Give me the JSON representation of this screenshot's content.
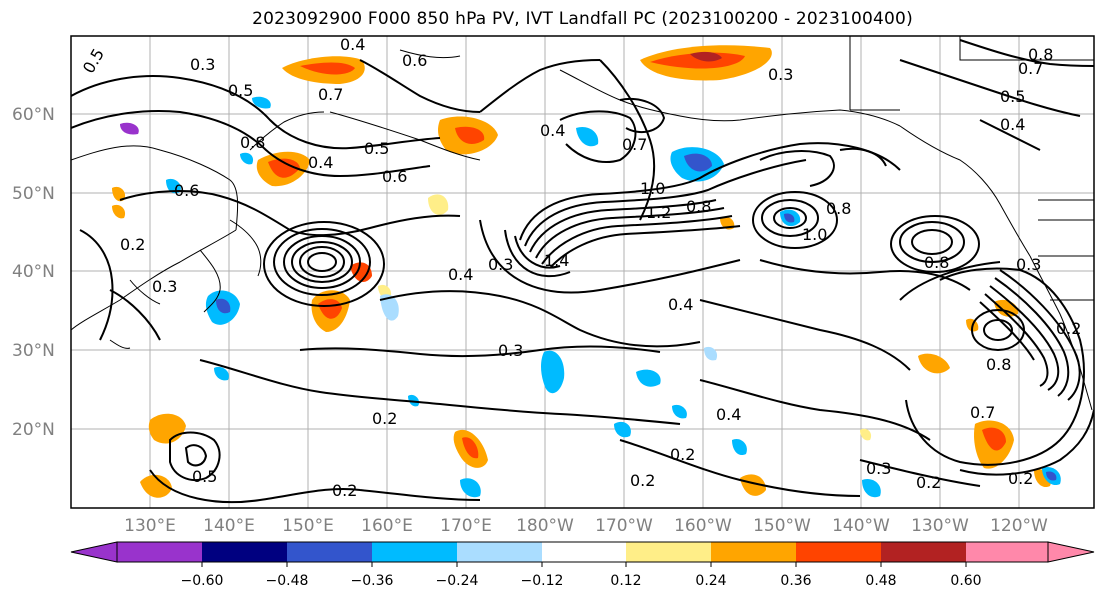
{
  "title": "2023092900 F000 850 hPa PV, IVT Landfall PC (2023100200 - 2023100400)",
  "map": {
    "lat_labels": [
      "60°N",
      "50°N",
      "40°N",
      "30°N",
      "20°N"
    ],
    "lon_labels": [
      "130°E",
      "140°E",
      "150°E",
      "160°E",
      "170°E",
      "180°W",
      "170°W",
      "160°W",
      "150°W",
      "140°W",
      "130°W",
      "120°W"
    ],
    "contour_labels": [
      "0.5",
      "0.3",
      "0.4",
      "0.6",
      "0.5",
      "0.7",
      "0.3",
      "0.8",
      "0.7",
      "0.5",
      "0.4",
      "0.8",
      "0.4",
      "0.5",
      "0.6",
      "0.6",
      "0.7",
      "0.4",
      "1.0",
      "1.2",
      "0.8",
      "1.0",
      "0.8",
      "0.8",
      "0.4",
      "0.3",
      "1.4",
      "0.4",
      "0.3",
      "0.3",
      "0.2",
      "0.2",
      "0.4",
      "0.2",
      "0.2",
      "0.3",
      "0.2",
      "0.7",
      "0.8",
      "0.2",
      "0.2",
      "0.3",
      "0.5",
      "0.2"
    ]
  },
  "colorbar": {
    "ticks": [
      "−0.60",
      "−0.48",
      "−0.36",
      "−0.24",
      "−0.12",
      "0.12",
      "0.24",
      "0.36",
      "0.48",
      "0.60"
    ],
    "colors": [
      "#9933cc",
      "#000080",
      "#3355cc",
      "#00bbff",
      "#aaddff",
      "#ffffff",
      "#ffee88",
      "#ffa500",
      "#ff4400",
      "#b22222",
      "#ff88aa"
    ]
  }
}
